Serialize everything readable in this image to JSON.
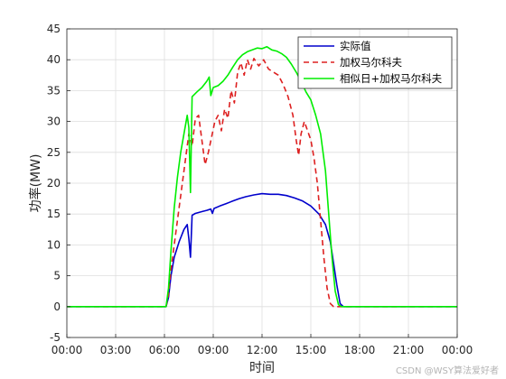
{
  "chart_data": {
    "type": "line",
    "xlabel": "时间",
    "ylabel": "功率(MW)",
    "xlim": [
      0,
      24
    ],
    "ylim": [
      -5,
      45
    ],
    "x_ticks": [
      {
        "value": 0,
        "label": "00:00"
      },
      {
        "value": 3,
        "label": "03:00"
      },
      {
        "value": 6,
        "label": "06:00"
      },
      {
        "value": 9,
        "label": "09:00"
      },
      {
        "value": 12,
        "label": "12:00"
      },
      {
        "value": 15,
        "label": "15:00"
      },
      {
        "value": 18,
        "label": "18:00"
      },
      {
        "value": 21,
        "label": "21:00"
      },
      {
        "value": 24,
        "label": "00:00"
      }
    ],
    "y_ticks": [
      -5,
      0,
      5,
      10,
      15,
      20,
      25,
      30,
      35,
      40,
      45
    ],
    "grid": true,
    "legend_position": "top-right",
    "series": [
      {
        "name": "实际值",
        "color": "#0000cc",
        "style": "solid",
        "points": [
          [
            0,
            0
          ],
          [
            6.1,
            0
          ],
          [
            6.25,
            1.5
          ],
          [
            6.4,
            5
          ],
          [
            6.6,
            8
          ],
          [
            6.9,
            10.5
          ],
          [
            7.2,
            12.5
          ],
          [
            7.4,
            13.3
          ],
          [
            7.5,
            11
          ],
          [
            7.6,
            8
          ],
          [
            7.7,
            14.8
          ],
          [
            7.9,
            15.1
          ],
          [
            8.3,
            15.4
          ],
          [
            8.6,
            15.6
          ],
          [
            8.85,
            15.8
          ],
          [
            8.95,
            15.1
          ],
          [
            9.05,
            15.9
          ],
          [
            9.4,
            16.3
          ],
          [
            9.8,
            16.7
          ],
          [
            10.2,
            17.1
          ],
          [
            10.6,
            17.5
          ],
          [
            11.0,
            17.8
          ],
          [
            11.5,
            18.1
          ],
          [
            12.0,
            18.3
          ],
          [
            12.5,
            18.2
          ],
          [
            13.0,
            18.2
          ],
          [
            13.5,
            18.0
          ],
          [
            14.0,
            17.6
          ],
          [
            14.5,
            17.1
          ],
          [
            15.0,
            16.3
          ],
          [
            15.5,
            15.0
          ],
          [
            15.9,
            13.3
          ],
          [
            16.2,
            10.5
          ],
          [
            16.4,
            7
          ],
          [
            16.6,
            3.5
          ],
          [
            16.8,
            0.5
          ],
          [
            17.0,
            0
          ],
          [
            24,
            0
          ]
        ]
      },
      {
        "name": "加权马尔科夫",
        "color": "#dd2020",
        "style": "dashed",
        "points": [
          [
            0,
            0
          ],
          [
            6.1,
            0
          ],
          [
            6.25,
            2
          ],
          [
            6.4,
            6
          ],
          [
            6.7,
            12
          ],
          [
            7.0,
            18
          ],
          [
            7.3,
            24
          ],
          [
            7.5,
            28
          ],
          [
            7.7,
            26
          ],
          [
            7.9,
            30.5
          ],
          [
            8.1,
            31
          ],
          [
            8.3,
            27
          ],
          [
            8.5,
            23
          ],
          [
            8.7,
            25
          ],
          [
            8.9,
            27.5
          ],
          [
            9.1,
            30
          ],
          [
            9.3,
            31
          ],
          [
            9.5,
            28.5
          ],
          [
            9.7,
            32
          ],
          [
            9.9,
            30.5
          ],
          [
            10.1,
            35
          ],
          [
            10.3,
            33
          ],
          [
            10.5,
            38
          ],
          [
            10.7,
            39.5
          ],
          [
            10.9,
            37.5
          ],
          [
            11.1,
            40
          ],
          [
            11.3,
            38.5
          ],
          [
            11.5,
            40.2
          ],
          [
            11.8,
            39
          ],
          [
            12.1,
            40
          ],
          [
            12.4,
            38.5
          ],
          [
            12.7,
            38
          ],
          [
            13.0,
            37.5
          ],
          [
            13.3,
            36
          ],
          [
            13.6,
            34
          ],
          [
            13.9,
            31
          ],
          [
            14.1,
            27
          ],
          [
            14.25,
            24.5
          ],
          [
            14.4,
            28
          ],
          [
            14.6,
            30
          ],
          [
            14.8,
            28.5
          ],
          [
            15.0,
            27
          ],
          [
            15.2,
            24
          ],
          [
            15.4,
            20
          ],
          [
            15.6,
            14
          ],
          [
            15.8,
            8
          ],
          [
            16.0,
            3
          ],
          [
            16.2,
            0.5
          ],
          [
            16.4,
            0
          ],
          [
            24,
            0
          ]
        ]
      },
      {
        "name": "相似日+加权马尔科夫",
        "color": "#00ee00",
        "style": "solid",
        "points": [
          [
            0,
            0
          ],
          [
            6.1,
            0
          ],
          [
            6.25,
            3
          ],
          [
            6.4,
            9
          ],
          [
            6.6,
            16
          ],
          [
            6.8,
            21
          ],
          [
            7.0,
            25
          ],
          [
            7.2,
            28
          ],
          [
            7.4,
            31
          ],
          [
            7.5,
            29
          ],
          [
            7.6,
            18.5
          ],
          [
            7.7,
            34
          ],
          [
            8.0,
            34.8
          ],
          [
            8.3,
            35.5
          ],
          [
            8.6,
            36.5
          ],
          [
            8.75,
            37.2
          ],
          [
            8.85,
            34.2
          ],
          [
            9.0,
            35.5
          ],
          [
            9.3,
            35.8
          ],
          [
            9.6,
            36.5
          ],
          [
            9.9,
            37.5
          ],
          [
            10.2,
            38.8
          ],
          [
            10.5,
            40
          ],
          [
            10.8,
            40.8
          ],
          [
            11.1,
            41.3
          ],
          [
            11.4,
            41.6
          ],
          [
            11.7,
            41.9
          ],
          [
            12.0,
            41.8
          ],
          [
            12.3,
            42.1
          ],
          [
            12.6,
            41.6
          ],
          [
            12.9,
            41.4
          ],
          [
            13.2,
            41
          ],
          [
            13.5,
            40.4
          ],
          [
            13.8,
            39.3
          ],
          [
            14.1,
            38
          ],
          [
            14.4,
            36.5
          ],
          [
            14.7,
            34.8
          ],
          [
            15.0,
            33.5
          ],
          [
            15.3,
            31
          ],
          [
            15.6,
            28
          ],
          [
            15.9,
            22
          ],
          [
            16.1,
            15
          ],
          [
            16.3,
            8
          ],
          [
            16.5,
            2.5
          ],
          [
            16.7,
            0.3
          ],
          [
            16.9,
            0
          ],
          [
            24,
            0
          ]
        ]
      }
    ]
  },
  "watermark": "CSDN @WSY算法爱好者"
}
